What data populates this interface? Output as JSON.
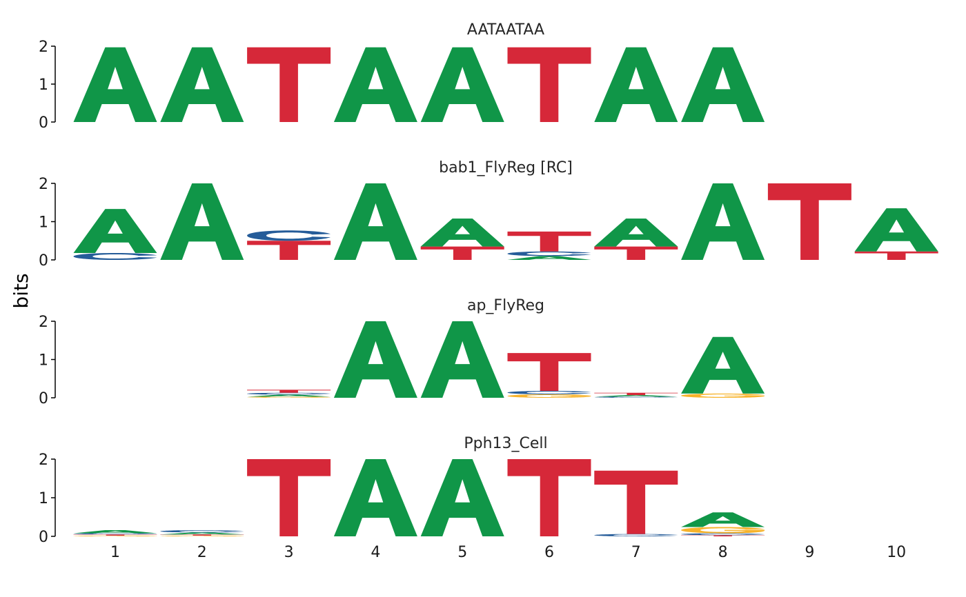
{
  "chart_data": {
    "type": "sequence-logo",
    "ylabel": "bits",
    "ylim": [
      0,
      2
    ],
    "yticks": [
      "0",
      "1",
      "2"
    ],
    "xticks": [
      "1",
      "2",
      "3",
      "4",
      "5",
      "6",
      "7",
      "8",
      "9",
      "10"
    ],
    "colors": {
      "A": "#109648",
      "C": "#255C99",
      "G": "#F7B32B",
      "T": "#D62839"
    },
    "panels": [
      {
        "title": "AATAATAA",
        "positions": [
          {
            "pos": 1,
            "letters": [
              {
                "l": "A",
                "h": 1.97
              }
            ]
          },
          {
            "pos": 2,
            "letters": [
              {
                "l": "A",
                "h": 1.97
              }
            ]
          },
          {
            "pos": 3,
            "letters": [
              {
                "l": "T",
                "h": 1.97
              }
            ]
          },
          {
            "pos": 4,
            "letters": [
              {
                "l": "A",
                "h": 1.97
              }
            ]
          },
          {
            "pos": 5,
            "letters": [
              {
                "l": "A",
                "h": 1.97
              }
            ]
          },
          {
            "pos": 6,
            "letters": [
              {
                "l": "T",
                "h": 1.97
              }
            ]
          },
          {
            "pos": 7,
            "letters": [
              {
                "l": "A",
                "h": 1.97
              }
            ]
          },
          {
            "pos": 8,
            "letters": [
              {
                "l": "A",
                "h": 1.97
              }
            ]
          }
        ]
      },
      {
        "title": "bab1_FlyReg [RC]",
        "positions": [
          {
            "pos": 1,
            "letters": [
              {
                "l": "C",
                "h": 0.18
              },
              {
                "l": "A",
                "h": 1.15
              }
            ]
          },
          {
            "pos": 2,
            "letters": [
              {
                "l": "A",
                "h": 2.0
              }
            ]
          },
          {
            "pos": 3,
            "letters": [
              {
                "l": "T",
                "h": 0.5
              },
              {
                "l": "C",
                "h": 0.27
              }
            ]
          },
          {
            "pos": 4,
            "letters": [
              {
                "l": "A",
                "h": 2.0
              }
            ]
          },
          {
            "pos": 5,
            "letters": [
              {
                "l": "T",
                "h": 0.35
              },
              {
                "l": "A",
                "h": 0.73
              }
            ]
          },
          {
            "pos": 6,
            "letters": [
              {
                "l": "A",
                "h": 0.1
              },
              {
                "l": "C",
                "h": 0.12
              },
              {
                "l": "T",
                "h": 0.52
              }
            ]
          },
          {
            "pos": 7,
            "letters": [
              {
                "l": "T",
                "h": 0.35
              },
              {
                "l": "A",
                "h": 0.73
              }
            ]
          },
          {
            "pos": 8,
            "letters": [
              {
                "l": "A",
                "h": 2.0
              }
            ]
          },
          {
            "pos": 9,
            "letters": [
              {
                "l": "T",
                "h": 2.0
              }
            ]
          },
          {
            "pos": 10,
            "letters": [
              {
                "l": "T",
                "h": 0.22
              },
              {
                "l": "A",
                "h": 1.13
              }
            ]
          }
        ]
      },
      {
        "title": "ap_FlyReg",
        "positions": [
          {
            "pos": 3,
            "letters": [
              {
                "l": "G",
                "h": 0.03
              },
              {
                "l": "A",
                "h": 0.05
              },
              {
                "l": "C",
                "h": 0.05
              },
              {
                "l": "T",
                "h": 0.08
              }
            ]
          },
          {
            "pos": 4,
            "letters": [
              {
                "l": "A",
                "h": 2.0
              }
            ]
          },
          {
            "pos": 5,
            "letters": [
              {
                "l": "A",
                "h": 2.0
              }
            ]
          },
          {
            "pos": 6,
            "letters": [
              {
                "l": "G",
                "h": 0.09
              },
              {
                "l": "C",
                "h": 0.09
              },
              {
                "l": "T",
                "h": 0.99
              }
            ]
          },
          {
            "pos": 7,
            "letters": [
              {
                "l": "C",
                "h": 0.03
              },
              {
                "l": "A",
                "h": 0.04
              },
              {
                "l": "T",
                "h": 0.06
              }
            ]
          },
          {
            "pos": 8,
            "letters": [
              {
                "l": "G",
                "h": 0.11
              },
              {
                "l": "A",
                "h": 1.48
              }
            ]
          }
        ]
      },
      {
        "title": "Pph13_Cell",
        "positions": [
          {
            "pos": 1,
            "letters": [
              {
                "l": "G",
                "h": 0.02
              },
              {
                "l": "T",
                "h": 0.03
              },
              {
                "l": "C",
                "h": 0.03
              },
              {
                "l": "A",
                "h": 0.08
              }
            ]
          },
          {
            "pos": 2,
            "letters": [
              {
                "l": "G",
                "h": 0.02
              },
              {
                "l": "T",
                "h": 0.03
              },
              {
                "l": "A",
                "h": 0.05
              },
              {
                "l": "C",
                "h": 0.06
              }
            ]
          },
          {
            "pos": 3,
            "letters": [
              {
                "l": "T",
                "h": 2.0
              }
            ]
          },
          {
            "pos": 4,
            "letters": [
              {
                "l": "A",
                "h": 2.0
              }
            ]
          },
          {
            "pos": 5,
            "letters": [
              {
                "l": "A",
                "h": 2.0
              }
            ]
          },
          {
            "pos": 6,
            "letters": [
              {
                "l": "T",
                "h": 2.0
              }
            ]
          },
          {
            "pos": 7,
            "letters": [
              {
                "l": "C",
                "h": 0.06
              },
              {
                "l": "T",
                "h": 1.64
              }
            ]
          },
          {
            "pos": 8,
            "letters": [
              {
                "l": "T",
                "h": 0.03
              },
              {
                "l": "C",
                "h": 0.05
              },
              {
                "l": "G",
                "h": 0.16
              },
              {
                "l": "A",
                "h": 0.38
              }
            ]
          }
        ]
      }
    ]
  }
}
